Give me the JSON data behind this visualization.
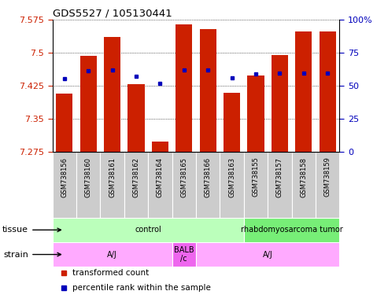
{
  "title": "GDS5527 / 105130441",
  "samples": [
    "GSM738156",
    "GSM738160",
    "GSM738161",
    "GSM738162",
    "GSM738164",
    "GSM738165",
    "GSM738166",
    "GSM738163",
    "GSM738155",
    "GSM738157",
    "GSM738158",
    "GSM738159"
  ],
  "bar_tops": [
    7.407,
    7.493,
    7.535,
    7.428,
    7.298,
    7.565,
    7.553,
    7.408,
    7.448,
    7.495,
    7.548,
    7.548
  ],
  "blue_markers": [
    7.441,
    7.458,
    7.461,
    7.447,
    7.43,
    7.461,
    7.461,
    7.443,
    7.451,
    7.453,
    7.454,
    7.454
  ],
  "ymin": 7.275,
  "ymax": 7.575,
  "yticks": [
    7.275,
    7.35,
    7.425,
    7.5,
    7.575
  ],
  "right_yticks": [
    0,
    25,
    50,
    75,
    100
  ],
  "bar_color": "#cc2000",
  "blue_color": "#0000bb",
  "bar_width": 0.7,
  "tissue_groups": [
    {
      "start": 0,
      "end": 7,
      "text": "control",
      "color": "#bbffbb"
    },
    {
      "start": 8,
      "end": 11,
      "text": "rhabdomyosarcoma tumor",
      "color": "#77ee77"
    }
  ],
  "strain_groups": [
    {
      "start": 0,
      "end": 4,
      "text": "A/J",
      "color": "#ffaaff"
    },
    {
      "start": 5,
      "end": 5,
      "text": "BALB\n/c",
      "color": "#ee66ee"
    },
    {
      "start": 6,
      "end": 11,
      "text": "A/J",
      "color": "#ffaaff"
    }
  ],
  "legend_items": [
    {
      "label": "transformed count",
      "color": "#cc2000"
    },
    {
      "label": "percentile rank within the sample",
      "color": "#0000bb"
    }
  ],
  "left_tick_color": "#cc2000",
  "right_tick_color": "#0000bb",
  "xtick_bg": "#cccccc",
  "plot_bg": "#ffffff"
}
